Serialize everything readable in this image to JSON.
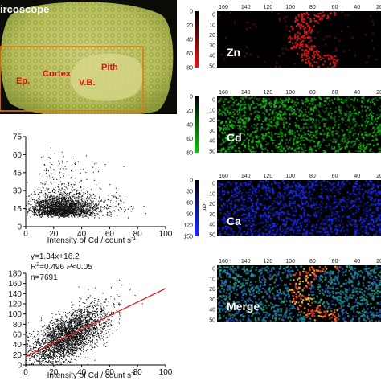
{
  "micrograph": {
    "title_fragment": "ircoscope",
    "labels": {
      "ep": "Ep.",
      "cortex": "Cortex",
      "vb": "V.B.",
      "pith": "Pith"
    }
  },
  "colors": {
    "zn": "#e01818",
    "cd": "#16c016",
    "ca": "#1a2cff",
    "fit_line": "#e02020"
  },
  "chart_data": [
    {
      "type": "scatter",
      "xlabel": "Intensity of Cd / count s",
      "xlabel_superscript": "-1",
      "ylabel": "",
      "xlim": [
        0,
        100
      ],
      "ylim": [
        0,
        75
      ],
      "x_ticks": [
        0,
        20,
        40,
        60,
        80,
        100
      ],
      "y_ticks": [
        0,
        15,
        30,
        45,
        60,
        75
      ],
      "y_tick_labels": [
        "0",
        "15",
        "30",
        "45",
        "60",
        "75"
      ],
      "y_grid_min": 7.5,
      "y_grid_step": 0.6,
      "x_density_peak": 27,
      "x_density_spread": 16
    },
    {
      "type": "scatter",
      "xlabel": "Intensity of Cd / count s",
      "xlabel_superscript": "-1",
      "ylabel": "",
      "xlim": [
        0,
        100
      ],
      "ylim": [
        0,
        180
      ],
      "x_ticks": [
        0,
        20,
        40,
        60,
        80,
        100
      ],
      "y_ticks": [
        0,
        20,
        40,
        60,
        80,
        100,
        120,
        140,
        160,
        180
      ],
      "annotations": {
        "equation": "y=1.34x+16.2",
        "r2_label": "R",
        "r2_superscript": "2",
        "r2_value": "=0.496",
        "p_label": "P",
        "p_value": "<0.05",
        "n": "n=7691"
      },
      "fit": {
        "slope": 1.34,
        "intercept": 16.2
      },
      "n_points": 7691
    }
  ],
  "maps": {
    "x_ticks": [
      "160",
      "140",
      "120",
      "100",
      "80",
      "60",
      "40",
      "20"
    ],
    "panels": [
      {
        "element": "Zn",
        "colorbar_ticks": [
          "0",
          "20",
          "40",
          "60",
          "80"
        ],
        "colorbar_unit": "",
        "y_ticks": [
          "0",
          "10",
          "20",
          "30",
          "40",
          "50"
        ]
      },
      {
        "element": "Cd",
        "colorbar_ticks": [
          "0",
          "20",
          "40",
          "60",
          "80"
        ],
        "colorbar_unit": "",
        "y_ticks": [
          "0",
          "10",
          "20",
          "30",
          "40",
          "50"
        ]
      },
      {
        "element": "Ca",
        "colorbar_ticks": [
          "0",
          "30",
          "60",
          "90",
          "120",
          "150"
        ],
        "colorbar_unit": "cnt",
        "y_ticks": [
          "0",
          "10",
          "20",
          "30",
          "40",
          "50"
        ]
      },
      {
        "element": "Merge",
        "colorbar_ticks": [],
        "colorbar_unit": "",
        "y_ticks": [
          "0",
          "10",
          "20",
          "30",
          "40",
          "50"
        ]
      }
    ]
  }
}
